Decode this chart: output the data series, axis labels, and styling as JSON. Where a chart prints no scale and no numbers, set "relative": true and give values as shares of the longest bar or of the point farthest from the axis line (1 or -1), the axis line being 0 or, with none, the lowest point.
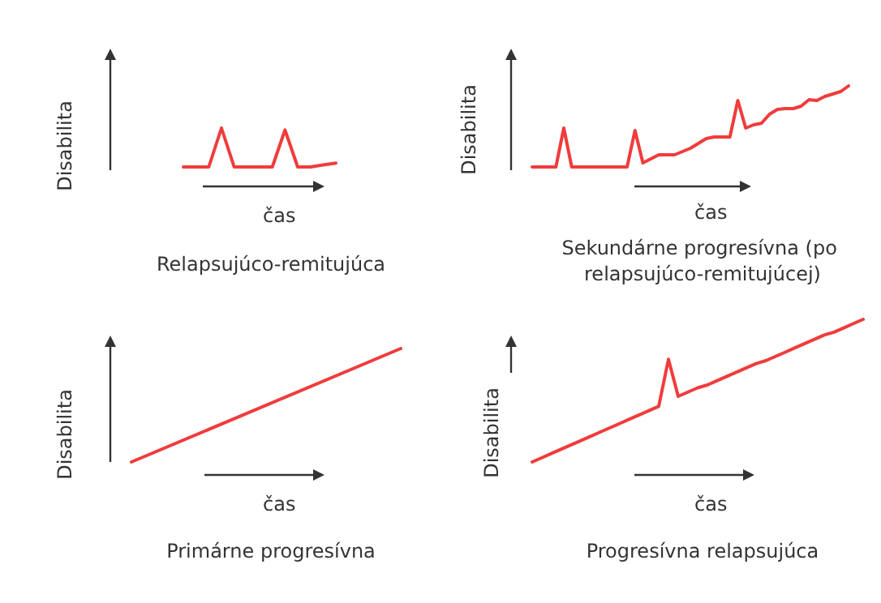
{
  "chart_data": [
    {
      "type": "line",
      "title": "Relapsujúco-remitujúca",
      "xlabel": "čas",
      "ylabel": "Disabilita",
      "relative": true,
      "marker": "none",
      "color": "#f03c3c",
      "categories": [
        null,
        null,
        null,
        null,
        null,
        null,
        null,
        null,
        null,
        null,
        null,
        null,
        null
      ],
      "values": [
        0,
        0,
        0,
        1,
        0,
        0,
        0,
        0,
        0.95,
        0,
        0,
        0.05,
        0.1
      ]
    },
    {
      "type": "line",
      "title": "Sekundárne progresívna (po relapsujúco-remitujúcej)",
      "xlabel": "čas",
      "ylabel": "Disabilita",
      "relative": true,
      "marker": "none",
      "color": "#f03c3c",
      "categories": [
        null,
        null,
        null,
        null,
        null,
        null,
        null,
        null,
        null,
        null,
        null,
        null,
        null,
        null,
        null,
        null,
        null,
        null,
        null,
        null,
        null,
        null,
        null,
        null,
        null,
        null,
        null,
        null,
        null,
        null,
        null,
        null,
        null,
        null,
        null,
        null,
        null,
        null,
        null,
        null,
        null
      ],
      "values": [
        0,
        0,
        0,
        0,
        0.48,
        0,
        0,
        0,
        0,
        0,
        0,
        0,
        0,
        0.45,
        0.05,
        0.1,
        0.15,
        0.15,
        0.15,
        0.19,
        0.23,
        0.29,
        0.35,
        0.37,
        0.37,
        0.37,
        0.82,
        0.48,
        0.52,
        0.54,
        0.65,
        0.71,
        0.72,
        0.72,
        0.75,
        0.83,
        0.82,
        0.87,
        0.9,
        0.93,
        1
      ]
    },
    {
      "type": "line",
      "title": "Primárne progresívna",
      "xlabel": "čas",
      "ylabel": "Disabilita",
      "relative": true,
      "marker": "none",
      "color": "#f03c3c",
      "categories": [
        null,
        null
      ],
      "values": [
        0,
        1
      ]
    },
    {
      "type": "line",
      "title": "Progresívna relapsujúca",
      "xlabel": "čas",
      "ylabel": "Disabilita",
      "relative": true,
      "marker": "none",
      "color": "#f03c3c",
      "categories": [
        null,
        null,
        null,
        null,
        null,
        null,
        null,
        null,
        null,
        null,
        null,
        null,
        null,
        null,
        null,
        null,
        null,
        null,
        null,
        null,
        null,
        null,
        null,
        null,
        null,
        null,
        null,
        null,
        null,
        null,
        null,
        null,
        null,
        null,
        null
      ],
      "values": [
        0,
        0.03,
        0.06,
        0.09,
        0.12,
        0.15,
        0.18,
        0.21,
        0.24,
        0.27,
        0.3,
        0.33,
        0.36,
        0.39,
        0.72,
        0.46,
        0.49,
        0.52,
        0.54,
        0.57,
        0.6,
        0.63,
        0.66,
        0.69,
        0.71,
        0.74,
        0.77,
        0.8,
        0.83,
        0.86,
        0.89,
        0.91,
        0.94,
        0.97,
        1
      ]
    }
  ]
}
